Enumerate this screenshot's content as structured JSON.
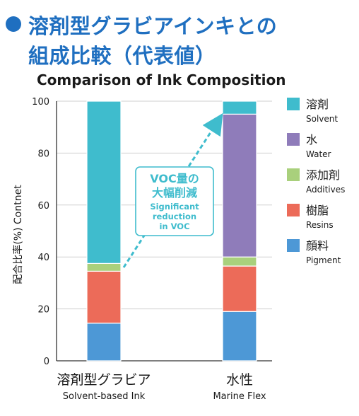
{
  "heading": {
    "line1": "溶剤型グラビアインキとの",
    "line2": "組成比較（代表値）"
  },
  "chart_data": {
    "type": "bar",
    "stacked": true,
    "title": "Comparison of Ink Composition",
    "ylabel": "配合比率(%) Contnet",
    "ylim": [
      0,
      100
    ],
    "yticks": [
      0,
      20,
      40,
      60,
      80,
      100
    ],
    "grid": true,
    "legend_position": "right",
    "categories": [
      {
        "jp": "溶剤型グラビア",
        "en": "Solvent-based Ink"
      },
      {
        "jp": "水性",
        "en": "Marine Flex"
      }
    ],
    "series": [
      {
        "jp": "顔料",
        "en": "Pigment",
        "color": "#4d98d6",
        "values": [
          14.5,
          19
        ]
      },
      {
        "jp": "樹脂",
        "en": "Resins",
        "color": "#ec6b59",
        "values": [
          20,
          17.5
        ]
      },
      {
        "jp": "添加剤",
        "en": "Additives",
        "color": "#a9d07c",
        "values": [
          3,
          3.5
        ]
      },
      {
        "jp": "水",
        "en": "Water",
        "color": "#8f7cba",
        "values": [
          0,
          55
        ]
      },
      {
        "jp": "溶剤",
        "en": "Solvent",
        "color": "#3fbccd",
        "values": [
          62.5,
          5
        ]
      }
    ],
    "annotation": {
      "title_line1": "VOC量の",
      "title_line2": "大幅削減",
      "text_line1": "Significant",
      "text_line2": "reduction",
      "text_line3": "in VOC",
      "color": "#3fbccd"
    }
  }
}
